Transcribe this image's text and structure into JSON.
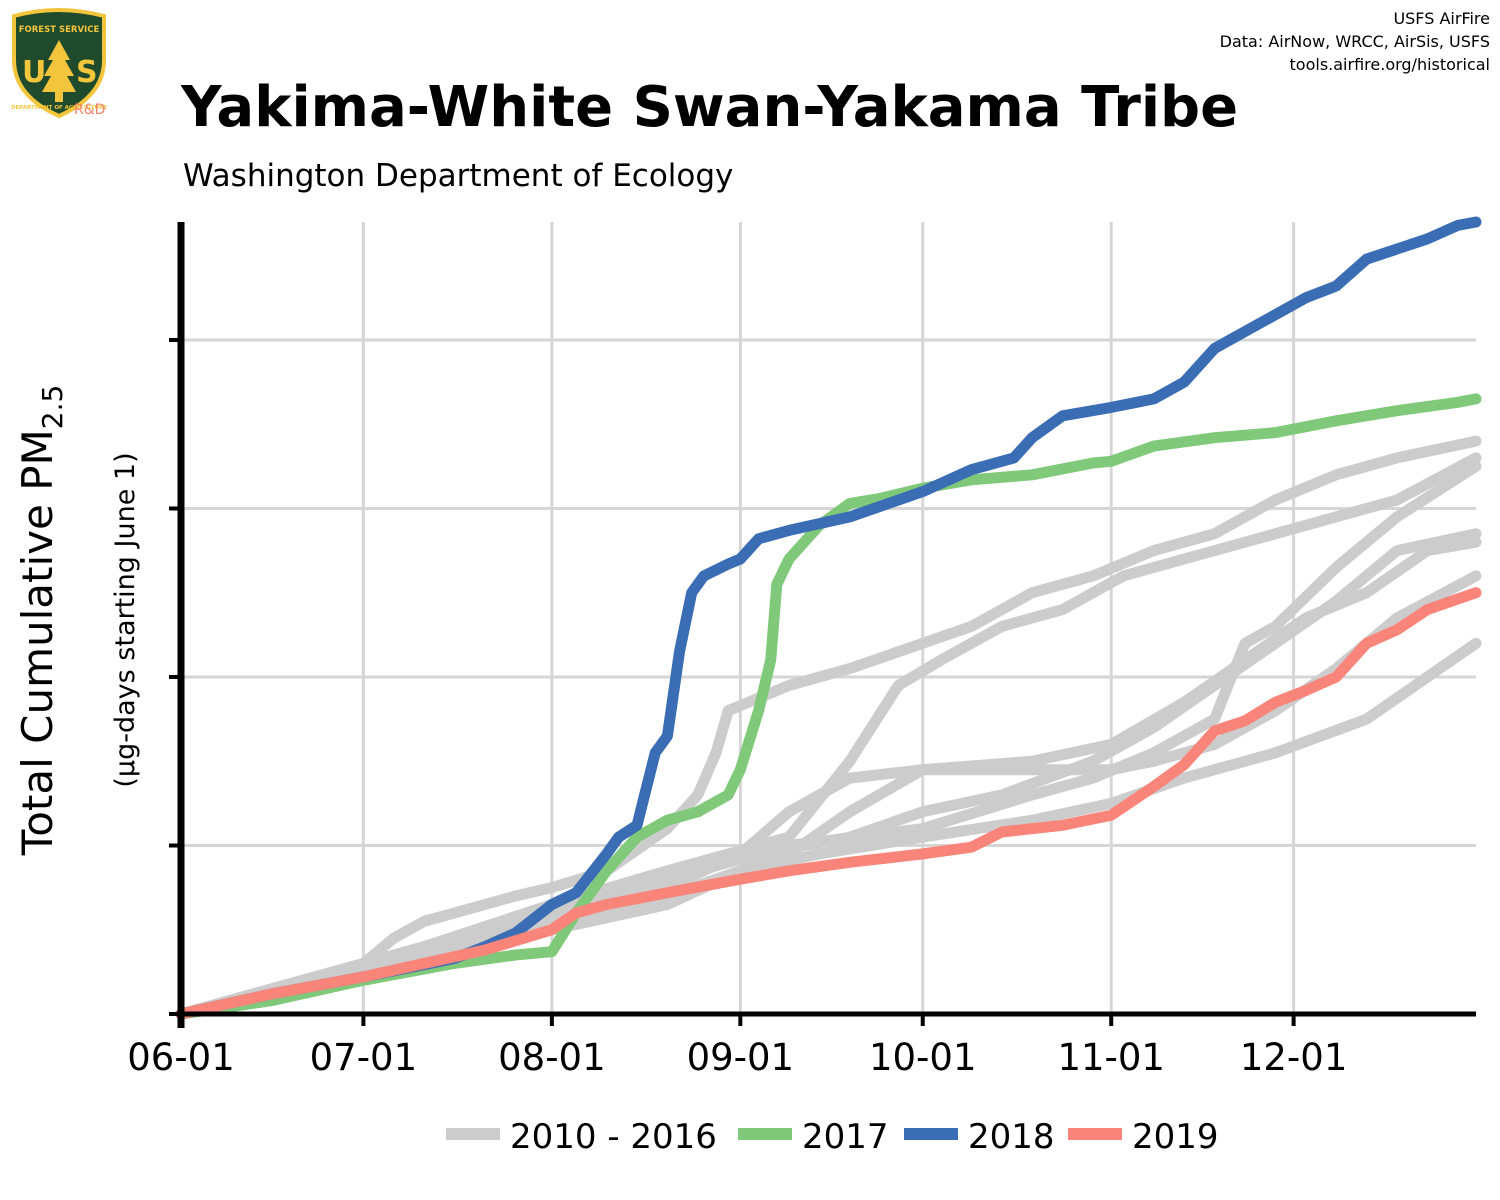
{
  "header": {
    "title": "Yakima-White Swan-Yakama Tribe",
    "subtitle": "Washington Department of Ecology",
    "credits": [
      "USFS AirFire",
      "Data: AirNow, WRCC, AirSis, USFS",
      "tools.airfire.org/historical"
    ]
  },
  "logo": {
    "icon": "usfs-shield-icon",
    "letters": "US",
    "top_text": "FOREST SERVICE",
    "bottom_text": "DEPARTMENT OF AGRICULTURE",
    "badge": "R&D"
  },
  "colors": {
    "historical": "#cccccc",
    "y2017": "#80c97a",
    "y2018": "#3b6db4",
    "y2019": "#f9857a",
    "grid": "#d6d6d6"
  },
  "chart_data": {
    "type": "line",
    "x_axis": {
      "ticks": [
        "06-01",
        "07-01",
        "08-01",
        "09-01",
        "10-01",
        "11-01",
        "12-01"
      ],
      "tick_days": [
        0,
        30,
        61,
        92,
        122,
        153,
        183
      ],
      "range": [
        0,
        213
      ]
    },
    "y_axis": {
      "label_main": "Total Cumulative PM",
      "label_sub": "2.5",
      "label_units": "(µg-days starting June 1)",
      "range": [
        0,
        4.7
      ],
      "gridlines": [
        1,
        2,
        3,
        4
      ],
      "tick_labels_shown": false
    },
    "grid": true,
    "legend": {
      "placement": "bottom",
      "entries": [
        {
          "label": "2010 - 2016",
          "color_key": "historical"
        },
        {
          "label": "2017",
          "color_key": "y2017"
        },
        {
          "label": "2018",
          "color_key": "y2018"
        },
        {
          "label": "2019",
          "color_key": "y2019"
        }
      ]
    },
    "series": [
      {
        "name": "2010 - 2016",
        "group": "historical",
        "points": [
          [
            0,
            0
          ],
          [
            15,
            0.15
          ],
          [
            30,
            0.3
          ],
          [
            35,
            0.45
          ],
          [
            40,
            0.55
          ],
          [
            45,
            0.6
          ],
          [
            55,
            0.7
          ],
          [
            61,
            0.75
          ],
          [
            70,
            0.85
          ],
          [
            80,
            1.1
          ],
          [
            85,
            1.3
          ],
          [
            88,
            1.55
          ],
          [
            90,
            1.8
          ],
          [
            100,
            1.95
          ],
          [
            110,
            2.05
          ],
          [
            122,
            2.2
          ],
          [
            130,
            2.3
          ],
          [
            140,
            2.5
          ],
          [
            150,
            2.6
          ],
          [
            160,
            2.75
          ],
          [
            170,
            2.85
          ],
          [
            180,
            3.05
          ],
          [
            190,
            3.2
          ],
          [
            200,
            3.3
          ],
          [
            213,
            3.4
          ]
        ]
      },
      {
        "name": "2010 - 2016",
        "group": "historical",
        "points": [
          [
            0,
            0
          ],
          [
            20,
            0.15
          ],
          [
            40,
            0.4
          ],
          [
            61,
            0.65
          ],
          [
            80,
            0.85
          ],
          [
            100,
            1.05
          ],
          [
            110,
            1.5
          ],
          [
            118,
            1.95
          ],
          [
            125,
            2.1
          ],
          [
            135,
            2.3
          ],
          [
            145,
            2.4
          ],
          [
            155,
            2.6
          ],
          [
            165,
            2.7
          ],
          [
            175,
            2.8
          ],
          [
            185,
            2.9
          ],
          [
            200,
            3.05
          ],
          [
            213,
            3.3
          ]
        ]
      },
      {
        "name": "2010 - 2016",
        "group": "historical",
        "points": [
          [
            0,
            0
          ],
          [
            20,
            0.2
          ],
          [
            40,
            0.4
          ],
          [
            61,
            0.6
          ],
          [
            80,
            0.8
          ],
          [
            100,
            1.0
          ],
          [
            122,
            1.1
          ],
          [
            140,
            1.3
          ],
          [
            150,
            1.4
          ],
          [
            160,
            1.55
          ],
          [
            170,
            1.75
          ],
          [
            175,
            2.2
          ],
          [
            180,
            2.3
          ],
          [
            190,
            2.65
          ],
          [
            200,
            2.95
          ],
          [
            213,
            3.25
          ]
        ]
      },
      {
        "name": "2010 - 2016",
        "group": "historical",
        "points": [
          [
            0,
            0
          ],
          [
            20,
            0.15
          ],
          [
            40,
            0.35
          ],
          [
            61,
            0.6
          ],
          [
            80,
            0.8
          ],
          [
            95,
            0.95
          ],
          [
            110,
            1.05
          ],
          [
            122,
            1.2
          ],
          [
            135,
            1.3
          ],
          [
            150,
            1.5
          ],
          [
            160,
            1.7
          ],
          [
            170,
            1.95
          ],
          [
            180,
            2.2
          ],
          [
            190,
            2.45
          ],
          [
            200,
            2.75
          ],
          [
            213,
            2.85
          ]
        ]
      },
      {
        "name": "2010 - 2016",
        "group": "historical",
        "points": [
          [
            0,
            0
          ],
          [
            20,
            0.15
          ],
          [
            40,
            0.35
          ],
          [
            61,
            0.55
          ],
          [
            80,
            0.7
          ],
          [
            100,
            0.95
          ],
          [
            110,
            1.2
          ],
          [
            122,
            1.45
          ],
          [
            140,
            1.5
          ],
          [
            153,
            1.6
          ],
          [
            165,
            1.85
          ],
          [
            175,
            2.1
          ],
          [
            185,
            2.35
          ],
          [
            195,
            2.5
          ],
          [
            205,
            2.75
          ],
          [
            213,
            2.8
          ]
        ]
      },
      {
        "name": "2010 - 2016",
        "group": "historical",
        "points": [
          [
            0,
            0
          ],
          [
            20,
            0.15
          ],
          [
            40,
            0.35
          ],
          [
            61,
            0.55
          ],
          [
            80,
            0.75
          ],
          [
            92,
            0.95
          ],
          [
            100,
            1.2
          ],
          [
            110,
            1.4
          ],
          [
            122,
            1.45
          ],
          [
            153,
            1.45
          ],
          [
            160,
            1.5
          ],
          [
            170,
            1.6
          ],
          [
            180,
            1.8
          ],
          [
            190,
            2.05
          ],
          [
            200,
            2.35
          ],
          [
            213,
            2.6
          ]
        ]
      },
      {
        "name": "2010 - 2016",
        "group": "historical",
        "points": [
          [
            0,
            0
          ],
          [
            20,
            0.15
          ],
          [
            40,
            0.35
          ],
          [
            61,
            0.5
          ],
          [
            80,
            0.65
          ],
          [
            92,
            0.85
          ],
          [
            105,
            0.95
          ],
          [
            122,
            1.05
          ],
          [
            140,
            1.15
          ],
          [
            153,
            1.25
          ],
          [
            165,
            1.4
          ],
          [
            180,
            1.55
          ],
          [
            195,
            1.75
          ],
          [
            205,
            2.0
          ],
          [
            213,
            2.2
          ]
        ]
      }
    ],
    "highlight_series": [
      {
        "name": "2017",
        "color_key": "y2017",
        "points": [
          [
            0,
            0
          ],
          [
            15,
            0.08
          ],
          [
            30,
            0.2
          ],
          [
            45,
            0.3
          ],
          [
            55,
            0.35
          ],
          [
            61,
            0.37
          ],
          [
            65,
            0.6
          ],
          [
            70,
            0.85
          ],
          [
            75,
            1.05
          ],
          [
            80,
            1.15
          ],
          [
            85,
            1.2
          ],
          [
            90,
            1.3
          ],
          [
            92,
            1.45
          ],
          [
            95,
            1.8
          ],
          [
            97,
            2.1
          ],
          [
            98,
            2.55
          ],
          [
            100,
            2.7
          ],
          [
            105,
            2.9
          ],
          [
            110,
            3.03
          ],
          [
            115,
            3.06
          ],
          [
            122,
            3.12
          ],
          [
            130,
            3.17
          ],
          [
            140,
            3.2
          ],
          [
            150,
            3.27
          ],
          [
            153,
            3.28
          ],
          [
            160,
            3.37
          ],
          [
            170,
            3.42
          ],
          [
            180,
            3.45
          ],
          [
            190,
            3.52
          ],
          [
            200,
            3.58
          ],
          [
            210,
            3.63
          ],
          [
            213,
            3.65
          ]
        ]
      },
      {
        "name": "2018",
        "color_key": "y2018",
        "points": [
          [
            0,
            0
          ],
          [
            15,
            0.12
          ],
          [
            30,
            0.22
          ],
          [
            45,
            0.33
          ],
          [
            50,
            0.4
          ],
          [
            55,
            0.48
          ],
          [
            61,
            0.65
          ],
          [
            65,
            0.72
          ],
          [
            70,
            0.95
          ],
          [
            72,
            1.05
          ],
          [
            75,
            1.12
          ],
          [
            78,
            1.55
          ],
          [
            80,
            1.65
          ],
          [
            82,
            2.15
          ],
          [
            84,
            2.5
          ],
          [
            86,
            2.6
          ],
          [
            90,
            2.67
          ],
          [
            92,
            2.7
          ],
          [
            95,
            2.82
          ],
          [
            100,
            2.87
          ],
          [
            110,
            2.95
          ],
          [
            122,
            3.1
          ],
          [
            130,
            3.23
          ],
          [
            137,
            3.3
          ],
          [
            140,
            3.42
          ],
          [
            145,
            3.55
          ],
          [
            153,
            3.6
          ],
          [
            160,
            3.65
          ],
          [
            165,
            3.75
          ],
          [
            170,
            3.95
          ],
          [
            175,
            4.05
          ],
          [
            180,
            4.15
          ],
          [
            185,
            4.25
          ],
          [
            190,
            4.32
          ],
          [
            195,
            4.48
          ],
          [
            205,
            4.6
          ],
          [
            210,
            4.68
          ],
          [
            213,
            4.7
          ]
        ]
      },
      {
        "name": "2019",
        "color_key": "y2019",
        "points": [
          [
            0,
            0
          ],
          [
            15,
            0.12
          ],
          [
            30,
            0.22
          ],
          [
            40,
            0.3
          ],
          [
            50,
            0.38
          ],
          [
            61,
            0.5
          ],
          [
            65,
            0.6
          ],
          [
            70,
            0.65
          ],
          [
            80,
            0.72
          ],
          [
            92,
            0.8
          ],
          [
            100,
            0.85
          ],
          [
            110,
            0.9
          ],
          [
            122,
            0.95
          ],
          [
            130,
            0.99
          ],
          [
            135,
            1.08
          ],
          [
            145,
            1.12
          ],
          [
            153,
            1.18
          ],
          [
            160,
            1.35
          ],
          [
            165,
            1.48
          ],
          [
            170,
            1.68
          ],
          [
            175,
            1.74
          ],
          [
            180,
            1.85
          ],
          [
            185,
            1.92
          ],
          [
            190,
            2.0
          ],
          [
            195,
            2.2
          ],
          [
            200,
            2.28
          ],
          [
            205,
            2.4
          ],
          [
            213,
            2.5
          ]
        ]
      }
    ]
  }
}
